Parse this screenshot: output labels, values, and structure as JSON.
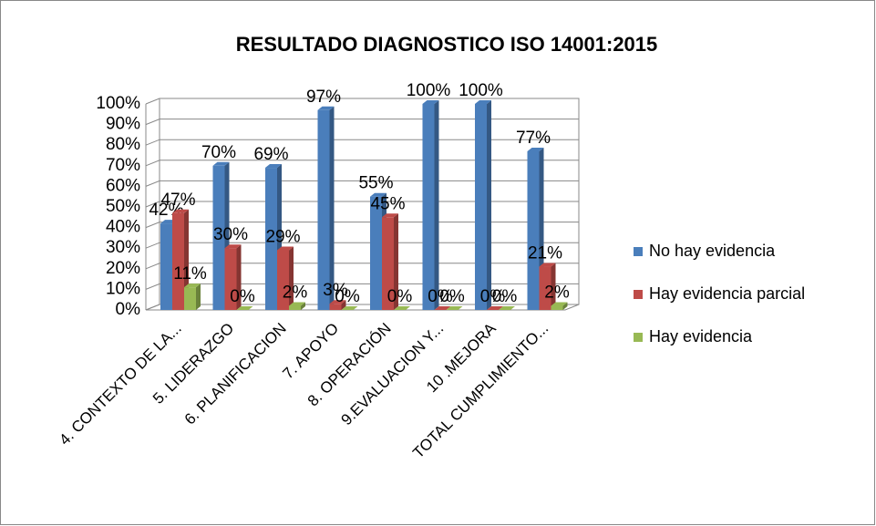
{
  "chart_data": {
    "type": "bar3d",
    "title": "RESULTADO DIAGNOSTICO ISO 14001:2015",
    "categories": [
      "4. CONTEXTO DE LA...",
      "5. LIDERAZGO",
      "6. PLANIFICACION",
      "7. APOYO",
      "8. OPERACIÓN",
      "9.EVALUACION Y...",
      "10 .MEJORA",
      "TOTAL CUMPLIMIENTO..."
    ],
    "series": [
      {
        "name": "No hay evidencia",
        "color": "#4a7ebb",
        "values": [
          42,
          70,
          69,
          97,
          55,
          100,
          100,
          77
        ],
        "value_labels": [
          "42%",
          "70%",
          "69%",
          "97%",
          "55%",
          "100%",
          "100%",
          "77%"
        ]
      },
      {
        "name": "Hay evidencia parcial",
        "color": "#be4b48",
        "values": [
          47,
          30,
          29,
          3,
          45,
          0,
          0,
          21
        ],
        "value_labels": [
          "47%",
          "30%",
          "29%",
          "3%",
          "45%",
          "0%",
          "0%",
          "21%"
        ]
      },
      {
        "name": "Hay evidencia",
        "color": "#98b954",
        "values": [
          11,
          0,
          2,
          0,
          0,
          0,
          0,
          2
        ],
        "value_labels": [
          "11%",
          "0%",
          "2%",
          "0%",
          "0%",
          "0%",
          "0%",
          "2%"
        ]
      }
    ],
    "ylim": [
      0,
      100
    ],
    "yticks": [
      {
        "value": 0,
        "label": "0%"
      },
      {
        "value": 10,
        "label": "10%"
      },
      {
        "value": 20,
        "label": "20%"
      },
      {
        "value": 30,
        "label": "30%"
      },
      {
        "value": 40,
        "label": "40%"
      },
      {
        "value": 50,
        "label": "50%"
      },
      {
        "value": 60,
        "label": "60%"
      },
      {
        "value": 70,
        "label": "70%"
      },
      {
        "value": 80,
        "label": "80%"
      },
      {
        "value": 90,
        "label": "90%"
      },
      {
        "value": 100,
        "label": "100%"
      }
    ],
    "grid": true,
    "legend": "right"
  }
}
